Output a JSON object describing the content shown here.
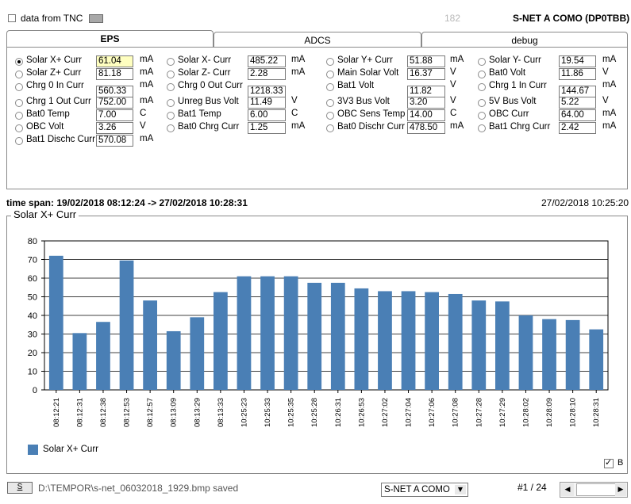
{
  "header": {
    "tnc_label": "data from TNC",
    "counter": "182",
    "title": "S-NET A COMO (DP0TBB)"
  },
  "tabs": [
    {
      "label": "EPS"
    },
    {
      "label": "ADCS"
    },
    {
      "label": "debug"
    }
  ],
  "eps_fields": [
    {
      "label": "Solar X+ Curr",
      "value": "61.04",
      "unit": "mA",
      "selected": true,
      "highlight": true
    },
    {
      "label": "Solar Z+ Curr",
      "value": "81.18",
      "unit": "mA"
    },
    {
      "label": "Chrg 0 In Curr",
      "value": "560.33",
      "unit": "mA"
    },
    {
      "label": "Chrg 1 Out Curr",
      "value": "752.00",
      "unit": "mA"
    },
    {
      "label": "Bat0 Temp",
      "value": "7.00",
      "unit": "C"
    },
    {
      "label": "OBC Volt",
      "value": "3.26",
      "unit": "V"
    },
    {
      "label": "Bat1 Dischc Curr",
      "value": "570.08",
      "unit": "mA"
    },
    {
      "label": "Solar X- Curr",
      "value": "485.22",
      "unit": "mA"
    },
    {
      "label": "Solar Z- Curr",
      "value": "2.28",
      "unit": "mA"
    },
    {
      "label": "Chrg 0 Out Curr",
      "value": "1218.33",
      "unit": ""
    },
    {
      "label": "Unreg Bus Volt",
      "value": "11.49",
      "unit": "V"
    },
    {
      "label": "Bat1 Temp",
      "value": "6.00",
      "unit": "C"
    },
    {
      "label": "Bat0 Chrg Curr",
      "value": "1.25",
      "unit": "mA"
    },
    {
      "label": "Solar Y+ Curr",
      "value": "51.88",
      "unit": "mA"
    },
    {
      "label": "Main Solar Volt",
      "value": "16.37",
      "unit": "V"
    },
    {
      "label": "Bat1 Volt",
      "value": "11.82",
      "unit": "V"
    },
    {
      "label": "3V3 Bus Volt",
      "value": "3.20",
      "unit": "V"
    },
    {
      "label": "OBC Sens Temp",
      "value": "14.00",
      "unit": "C"
    },
    {
      "label": "Bat0 Dischr Curr",
      "value": "478.50",
      "unit": "mA"
    },
    {
      "label": "Solar Y- Curr",
      "value": "19.54",
      "unit": "mA"
    },
    {
      "label": "Bat0 Volt",
      "value": "11.86",
      "unit": "V"
    },
    {
      "label": "Chrg 1 In Curr",
      "value": "144.67",
      "unit": "mA"
    },
    {
      "label": "5V Bus Volt",
      "value": "5.22",
      "unit": "V"
    },
    {
      "label": "OBC Curr",
      "value": "64.00",
      "unit": "mA"
    },
    {
      "label": "Bat1 Chrg Curr",
      "value": "2.42",
      "unit": "mA"
    }
  ],
  "timespan": {
    "text": "time span: 19/02/2018 08:12:24 -> 27/02/2018 10:28:31",
    "current": "27/02/2018 10:25:20"
  },
  "chart_group_title": "Solar X+ Curr",
  "chart_data": {
    "type": "bar",
    "categories": [
      "08:12:21",
      "08:12:31",
      "08:12:38",
      "08:12:53",
      "08:12:57",
      "08:13:09",
      "08:13:29",
      "08:13:33",
      "10:25:23",
      "10:25:33",
      "10:25:35",
      "10:25:28",
      "10:26:31",
      "10:26:53",
      "10:27:02",
      "10:27:04",
      "10:27:06",
      "10:27:08",
      "10:27:28",
      "10:27:29",
      "10:28:02",
      "10:28:09",
      "10:28:10",
      "10:28:31"
    ],
    "series": [
      {
        "name": "Solar X+ Curr",
        "color": "#4a7fb5",
        "values": [
          72,
          30.5,
          36.5,
          69.5,
          48,
          31.5,
          39,
          52.5,
          61,
          61,
          61,
          57.5,
          57.5,
          54.5,
          53,
          53,
          52.5,
          51.5,
          48,
          47.5,
          40,
          38,
          37.5,
          32.5
        ]
      }
    ],
    "ylim": [
      0,
      80
    ],
    "yticks": [
      0,
      10,
      20,
      30,
      40,
      50,
      60,
      70,
      80
    ],
    "grid": true,
    "legend_position": "bottom-left",
    "b_checkbox_label": "B"
  },
  "footer": {
    "save_button_label": "S",
    "status": "D:\\TEMPOR\\s-net_06032018_1929.bmp saved",
    "select_value": "S-NET A COMO",
    "page_indicator": "#1 / 24"
  }
}
